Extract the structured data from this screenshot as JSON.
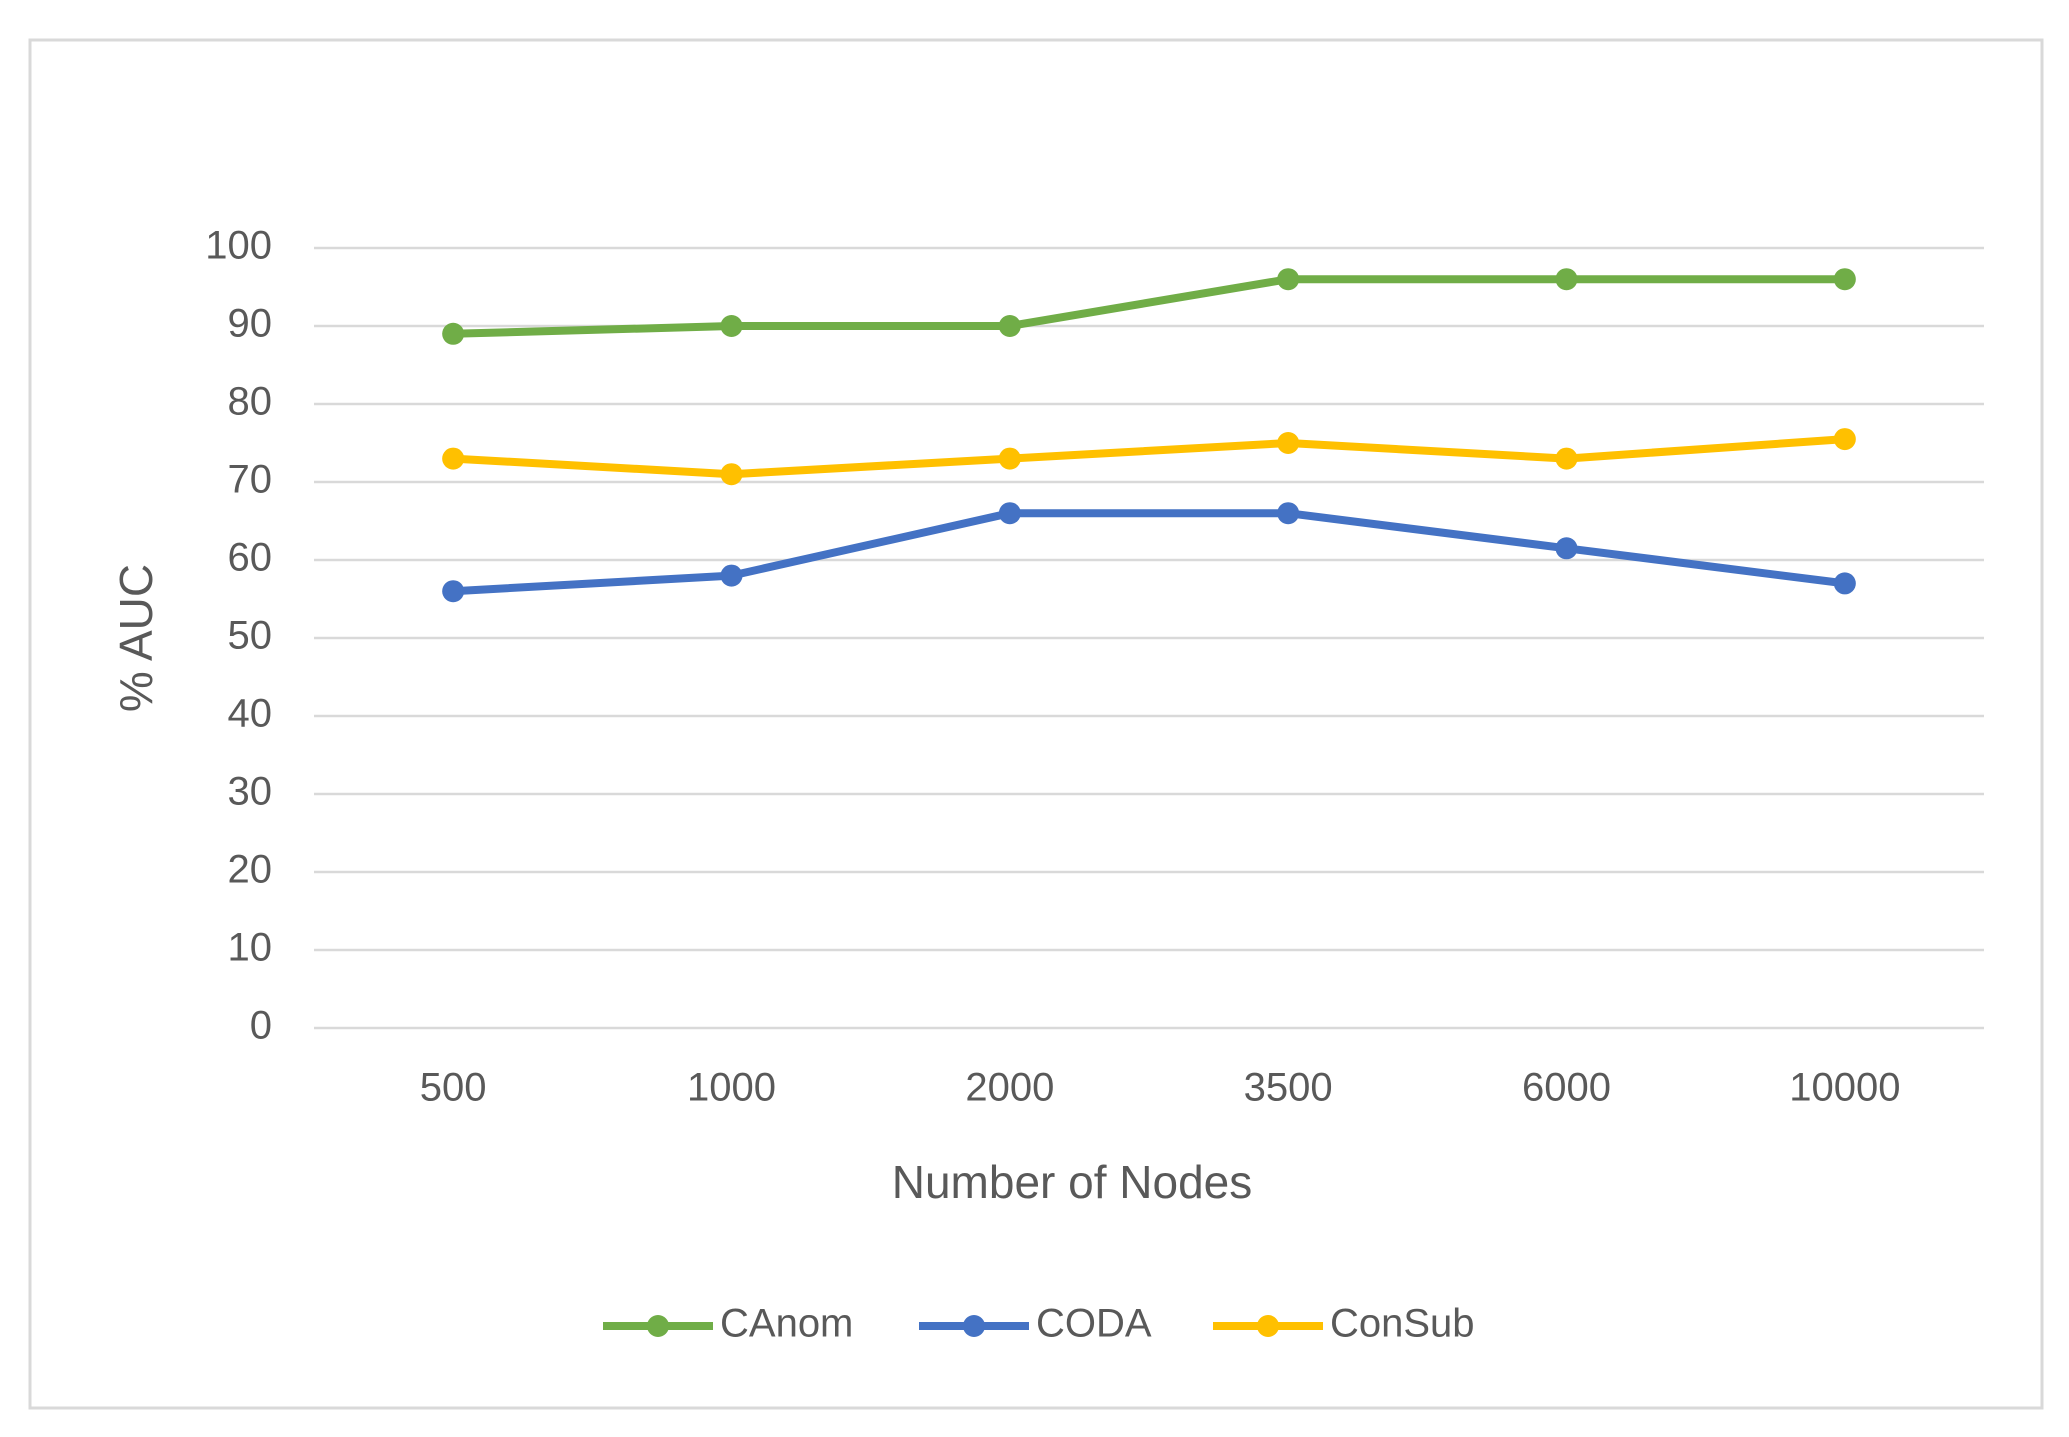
{
  "chart_data": {
    "type": "line",
    "x_label": "Number of Nodes",
    "y_label": "% AUC",
    "categories": [
      "500",
      "1000",
      "2000",
      "3500",
      "6000",
      "10000"
    ],
    "series": [
      {
        "name": "CAnom",
        "color": "#70ad47",
        "values": [
          89,
          90,
          90,
          96,
          96,
          96
        ]
      },
      {
        "name": "CODA",
        "color": "#4472c4",
        "values": [
          56,
          58,
          66,
          66,
          61.5,
          57
        ]
      },
      {
        "name": "ConSub",
        "color": "#ffc000",
        "values": [
          73,
          71,
          73,
          75,
          73,
          75.5
        ]
      }
    ],
    "ylim": [
      0,
      100
    ],
    "yticks": [
      0,
      10,
      20,
      30,
      40,
      50,
      60,
      70,
      80,
      90,
      100
    ],
    "grid": true,
    "legend": "bottom"
  }
}
